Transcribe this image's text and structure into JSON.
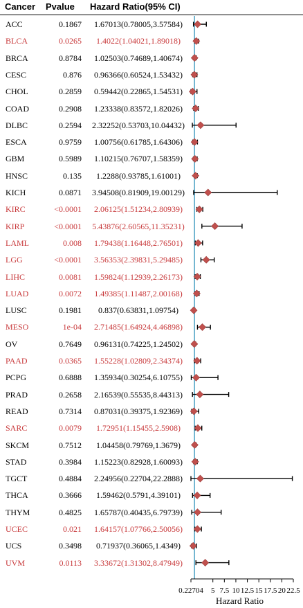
{
  "header": {
    "cancer": "Cancer",
    "pvalue": "Pvalue",
    "hr": "Hazard Ratio(95% CI)"
  },
  "rows": [
    {
      "cancer": "ACC",
      "pvalue": "0.1867",
      "hr_text": "1.67013(0.78005,3.57584)",
      "sig": false
    },
    {
      "cancer": "BLCA",
      "pvalue": "0.0265",
      "hr_text": "1.4022(1.04021,1.89018)",
      "sig": true
    },
    {
      "cancer": "BRCA",
      "pvalue": "0.8784",
      "hr_text": "1.02503(0.74689,1.40674)",
      "sig": false
    },
    {
      "cancer": "CESC",
      "pvalue": "0.876",
      "hr_text": "0.96366(0.60524,1.53432)",
      "sig": false
    },
    {
      "cancer": "CHOL",
      "pvalue": "0.2859",
      "hr_text": "0.59442(0.22865,1.54531)",
      "sig": false
    },
    {
      "cancer": "COAD",
      "pvalue": "0.2908",
      "hr_text": "1.23338(0.83572,1.82026)",
      "sig": false
    },
    {
      "cancer": "DLBC",
      "pvalue": "0.2594",
      "hr_text": "2.32252(0.53703,10.04432)",
      "sig": false
    },
    {
      "cancer": "ESCA",
      "pvalue": "0.9759",
      "hr_text": "1.00756(0.61785,1.64306)",
      "sig": false
    },
    {
      "cancer": "GBM",
      "pvalue": "0.5989",
      "hr_text": "1.10215(0.76707,1.58359)",
      "sig": false
    },
    {
      "cancer": "HNSC",
      "pvalue": "0.135",
      "hr_text": "1.2288(0.93785,1.61001)",
      "sig": false
    },
    {
      "cancer": "KICH",
      "pvalue": "0.0871",
      "hr_text": "3.94508(0.81909,19.00129)",
      "sig": false
    },
    {
      "cancer": "KIRC",
      "pvalue": "<0.0001",
      "hr_text": "2.06125(1.51234,2.80939)",
      "sig": true
    },
    {
      "cancer": "KIRP",
      "pvalue": "<0.0001",
      "hr_text": "5.43876(2.60565,11.35231)",
      "sig": true
    },
    {
      "cancer": "LAML",
      "pvalue": "0.008",
      "hr_text": "1.79438(1.16448,2.76501)",
      "sig": true
    },
    {
      "cancer": "LGG",
      "pvalue": "<0.0001",
      "hr_text": "3.56353(2.39831,5.29485)",
      "sig": true
    },
    {
      "cancer": "LIHC",
      "pvalue": "0.0081",
      "hr_text": "1.59824(1.12939,2.26173)",
      "sig": true
    },
    {
      "cancer": "LUAD",
      "pvalue": "0.0072",
      "hr_text": "1.49385(1.11487,2.00168)",
      "sig": true
    },
    {
      "cancer": "LUSC",
      "pvalue": "0.1981",
      "hr_text": "0.837(0.63831,1.09754)",
      "sig": false
    },
    {
      "cancer": "MESO",
      "pvalue": "1e-04",
      "hr_text": "2.71485(1.64924,4.46898)",
      "sig": true
    },
    {
      "cancer": "OV",
      "pvalue": "0.7649",
      "hr_text": "0.96131(0.74225,1.24502)",
      "sig": false
    },
    {
      "cancer": "PAAD",
      "pvalue": "0.0365",
      "hr_text": "1.55228(1.02809,2.34374)",
      "sig": true
    },
    {
      "cancer": "PCPG",
      "pvalue": "0.6888",
      "hr_text": "1.35934(0.30254,6.10755)",
      "sig": false
    },
    {
      "cancer": "PRAD",
      "pvalue": "0.2658",
      "hr_text": "2.16539(0.55535,8.44313)",
      "sig": false
    },
    {
      "cancer": "READ",
      "pvalue": "0.7314",
      "hr_text": "0.87031(0.39375,1.92369)",
      "sig": false
    },
    {
      "cancer": "SARC",
      "pvalue": "0.0079",
      "hr_text": "1.72951(1.15455,2.5908)",
      "sig": true
    },
    {
      "cancer": "SKCM",
      "pvalue": "0.7512",
      "hr_text": "1.04458(0.79769,1.3679)",
      "sig": false
    },
    {
      "cancer": "STAD",
      "pvalue": "0.3984",
      "hr_text": "1.15223(0.82928,1.60093)",
      "sig": false
    },
    {
      "cancer": "TGCT",
      "pvalue": "0.4884",
      "hr_text": "2.24956(0.22704,22.2888)",
      "sig": false
    },
    {
      "cancer": "THCA",
      "pvalue": "0.3666",
      "hr_text": "1.59462(0.5791,4.39101)",
      "sig": false
    },
    {
      "cancer": "THYM",
      "pvalue": "0.4825",
      "hr_text": "1.65787(0.40435,6.79739)",
      "sig": false
    },
    {
      "cancer": "UCEC",
      "pvalue": "0.021",
      "hr_text": "1.64157(1.07766,2.50056)",
      "sig": true
    },
    {
      "cancer": "UCS",
      "pvalue": "0.3498",
      "hr_text": "0.71937(0.36065,1.4349)",
      "sig": false
    },
    {
      "cancer": "UVM",
      "pvalue": "0.0113",
      "hr_text": "3.33672(1.31302,8.47949)",
      "sig": true
    }
  ],
  "chart_data": {
    "type": "forest",
    "xlabel": "Hazard Ratio",
    "xlim": [
      0.22704,
      22.5
    ],
    "xticks": [
      0.22704,
      5,
      7.5,
      10,
      12.5,
      15,
      17.5,
      20,
      22.5
    ],
    "xtick_labels": [
      "0.22704",
      "5",
      "7.5",
      "10",
      "12.5",
      "15",
      "17.5",
      "20",
      "22.5"
    ],
    "reference_line": 1,
    "points": [
      {
        "name": "ACC",
        "hr": 1.67013,
        "lo": 0.78005,
        "hi": 3.57584
      },
      {
        "name": "BLCA",
        "hr": 1.4022,
        "lo": 1.04021,
        "hi": 1.89018
      },
      {
        "name": "BRCA",
        "hr": 1.02503,
        "lo": 0.74689,
        "hi": 1.40674
      },
      {
        "name": "CESC",
        "hr": 0.96366,
        "lo": 0.60524,
        "hi": 1.53432
      },
      {
        "name": "CHOL",
        "hr": 0.59442,
        "lo": 0.22865,
        "hi": 1.54531
      },
      {
        "name": "COAD",
        "hr": 1.23338,
        "lo": 0.83572,
        "hi": 1.82026
      },
      {
        "name": "DLBC",
        "hr": 2.32252,
        "lo": 0.53703,
        "hi": 10.04432
      },
      {
        "name": "ESCA",
        "hr": 1.00756,
        "lo": 0.61785,
        "hi": 1.64306
      },
      {
        "name": "GBM",
        "hr": 1.10215,
        "lo": 0.76707,
        "hi": 1.58359
      },
      {
        "name": "HNSC",
        "hr": 1.2288,
        "lo": 0.93785,
        "hi": 1.61001
      },
      {
        "name": "KICH",
        "hr": 3.94508,
        "lo": 0.81909,
        "hi": 19.00129
      },
      {
        "name": "KIRC",
        "hr": 2.06125,
        "lo": 1.51234,
        "hi": 2.80939
      },
      {
        "name": "KIRP",
        "hr": 5.43876,
        "lo": 2.60565,
        "hi": 11.35231
      },
      {
        "name": "LAML",
        "hr": 1.79438,
        "lo": 1.16448,
        "hi": 2.76501
      },
      {
        "name": "LGG",
        "hr": 3.56353,
        "lo": 2.39831,
        "hi": 5.29485
      },
      {
        "name": "LIHC",
        "hr": 1.59824,
        "lo": 1.12939,
        "hi": 2.26173
      },
      {
        "name": "LUAD",
        "hr": 1.49385,
        "lo": 1.11487,
        "hi": 2.00168
      },
      {
        "name": "LUSC",
        "hr": 0.837,
        "lo": 0.63831,
        "hi": 1.09754
      },
      {
        "name": "MESO",
        "hr": 2.71485,
        "lo": 1.64924,
        "hi": 4.46898
      },
      {
        "name": "OV",
        "hr": 0.96131,
        "lo": 0.74225,
        "hi": 1.24502
      },
      {
        "name": "PAAD",
        "hr": 1.55228,
        "lo": 1.02809,
        "hi": 2.34374
      },
      {
        "name": "PCPG",
        "hr": 1.35934,
        "lo": 0.30254,
        "hi": 6.10755
      },
      {
        "name": "PRAD",
        "hr": 2.16539,
        "lo": 0.55535,
        "hi": 8.44313
      },
      {
        "name": "READ",
        "hr": 0.87031,
        "lo": 0.39375,
        "hi": 1.92369
      },
      {
        "name": "SARC",
        "hr": 1.72951,
        "lo": 1.15455,
        "hi": 2.5908
      },
      {
        "name": "SKCM",
        "hr": 1.04458,
        "lo": 0.79769,
        "hi": 1.3679
      },
      {
        "name": "STAD",
        "hr": 1.15223,
        "lo": 0.82928,
        "hi": 1.60093
      },
      {
        "name": "TGCT",
        "hr": 2.24956,
        "lo": 0.22704,
        "hi": 22.2888
      },
      {
        "name": "THCA",
        "hr": 1.59462,
        "lo": 0.5791,
        "hi": 4.39101
      },
      {
        "name": "THYM",
        "hr": 1.65787,
        "lo": 0.40435,
        "hi": 6.79739
      },
      {
        "name": "UCEC",
        "hr": 1.64157,
        "lo": 1.07766,
        "hi": 2.50056
      },
      {
        "name": "UCS",
        "hr": 0.71937,
        "lo": 0.36065,
        "hi": 1.4349
      },
      {
        "name": "UVM",
        "hr": 3.33672,
        "lo": 1.31302,
        "hi": 8.47949
      }
    ]
  },
  "colors": {
    "significant": "#c8393b",
    "text": "#000000",
    "marker": "#c0504d",
    "reference_line": "#5aa9c9",
    "ci_line": "#000000"
  }
}
